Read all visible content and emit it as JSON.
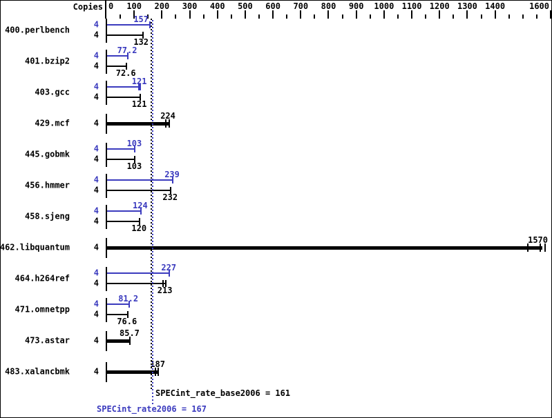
{
  "header": {
    "copies_label": "Copies"
  },
  "footer": {
    "base_result": "SPECint_rate_base2006 = 161",
    "peak_result": "SPECint_rate2006 = 167"
  },
  "colors": {
    "peak_blue": "#3a3abe",
    "base_black": "#000000",
    "background": "#ffffff"
  },
  "chart_data": {
    "type": "bar",
    "orientation": "horizontal",
    "title": "SPECint_rate2006 result graph",
    "xlim": [
      0,
      1600
    ],
    "x_major_tick_step": 100,
    "x_minor_tick_step": 50,
    "x_tick_labels": [
      0,
      100,
      200,
      300,
      400,
      500,
      600,
      700,
      800,
      900,
      1000,
      1100,
      1200,
      1300,
      1400,
      1600
    ],
    "unlabeled_major_ticks": [
      1500
    ],
    "grid": false,
    "copies_column_label": "Copies",
    "series_legend": [
      {
        "name": "peak",
        "color": "#3a3abe"
      },
      {
        "name": "base",
        "color": "#000000"
      }
    ],
    "reference_lines": [
      {
        "name": "base",
        "value": 161,
        "label": "SPECint_rate_base2006 = 161",
        "color": "#000000"
      },
      {
        "name": "peak",
        "value": 167,
        "label": "SPECint_rate2006 = 167",
        "color": "#3a3abe"
      }
    ],
    "benchmarks": [
      {
        "name": "400.perlbench",
        "display": "pair",
        "copies_peak": 4,
        "copies_base": 4,
        "peak": 157,
        "base": 132,
        "peak_label": "157",
        "base_label": "132",
        "peak_run_ticks": [
          0
        ],
        "base_run_ticks": [
          0
        ]
      },
      {
        "name": "401.bzip2",
        "display": "pair",
        "copies_peak": 4,
        "copies_base": 4,
        "peak": 77.2,
        "base": 72.6,
        "peak_label": "77.2",
        "base_label": "72.6",
        "peak_run_ticks": [
          0
        ],
        "base_run_ticks": [
          0
        ]
      },
      {
        "name": "403.gcc",
        "display": "pair",
        "copies_peak": 4,
        "copies_base": 4,
        "peak": 121,
        "base": 121,
        "peak_label": "121",
        "base_label": "121",
        "peak_run_ticks": [
          -2,
          0
        ],
        "base_run_ticks": [
          0
        ]
      },
      {
        "name": "429.mcf",
        "display": "single",
        "copies": 4,
        "value": 224,
        "value_label": "224",
        "run_ticks": [
          -4,
          1
        ]
      },
      {
        "name": "445.gobmk",
        "display": "pair",
        "copies_peak": 4,
        "copies_base": 4,
        "peak": 103,
        "base": 103,
        "peak_label": "103",
        "base_label": "103",
        "peak_run_ticks": [
          0
        ],
        "base_run_ticks": [
          0
        ]
      },
      {
        "name": "456.hmmer",
        "display": "pair",
        "copies_peak": 4,
        "copies_base": 4,
        "peak": 239,
        "base": 232,
        "peak_label": "239",
        "base_label": "232",
        "peak_run_ticks": [
          0
        ],
        "base_run_ticks": [
          0
        ]
      },
      {
        "name": "458.sjeng",
        "display": "pair",
        "copies_peak": 4,
        "copies_base": 4,
        "peak": 124,
        "base": 120,
        "peak_label": "124",
        "base_label": "120",
        "peak_run_ticks": [
          0
        ],
        "base_run_ticks": [
          0
        ]
      },
      {
        "name": "462.libquantum",
        "display": "single",
        "copies": 4,
        "value": 1570,
        "value_label": "1570",
        "run_ticks": [
          -21,
          -3,
          4
        ]
      },
      {
        "name": "464.h264ref",
        "display": "pair",
        "copies_peak": 4,
        "copies_base": 4,
        "peak": 227,
        "base": 213,
        "peak_label": "227",
        "base_label": "213",
        "peak_run_ticks": [
          0
        ],
        "base_run_ticks": [
          -4,
          0
        ]
      },
      {
        "name": "471.omnetpp",
        "display": "pair",
        "copies_peak": 4,
        "copies_base": 4,
        "peak": 81.2,
        "base": 76.6,
        "peak_label": "81.2",
        "base_label": "76.6",
        "peak_run_ticks": [
          0
        ],
        "base_run_ticks": [
          0
        ]
      },
      {
        "name": "473.astar",
        "display": "single",
        "copies": 4,
        "value": 85.7,
        "value_label": "85.7",
        "run_ticks": [
          0
        ]
      },
      {
        "name": "483.xalancbmk",
        "display": "single",
        "copies": 4,
        "value": 187,
        "value_label": "187",
        "run_ticks": [
          -4,
          0
        ]
      }
    ]
  }
}
